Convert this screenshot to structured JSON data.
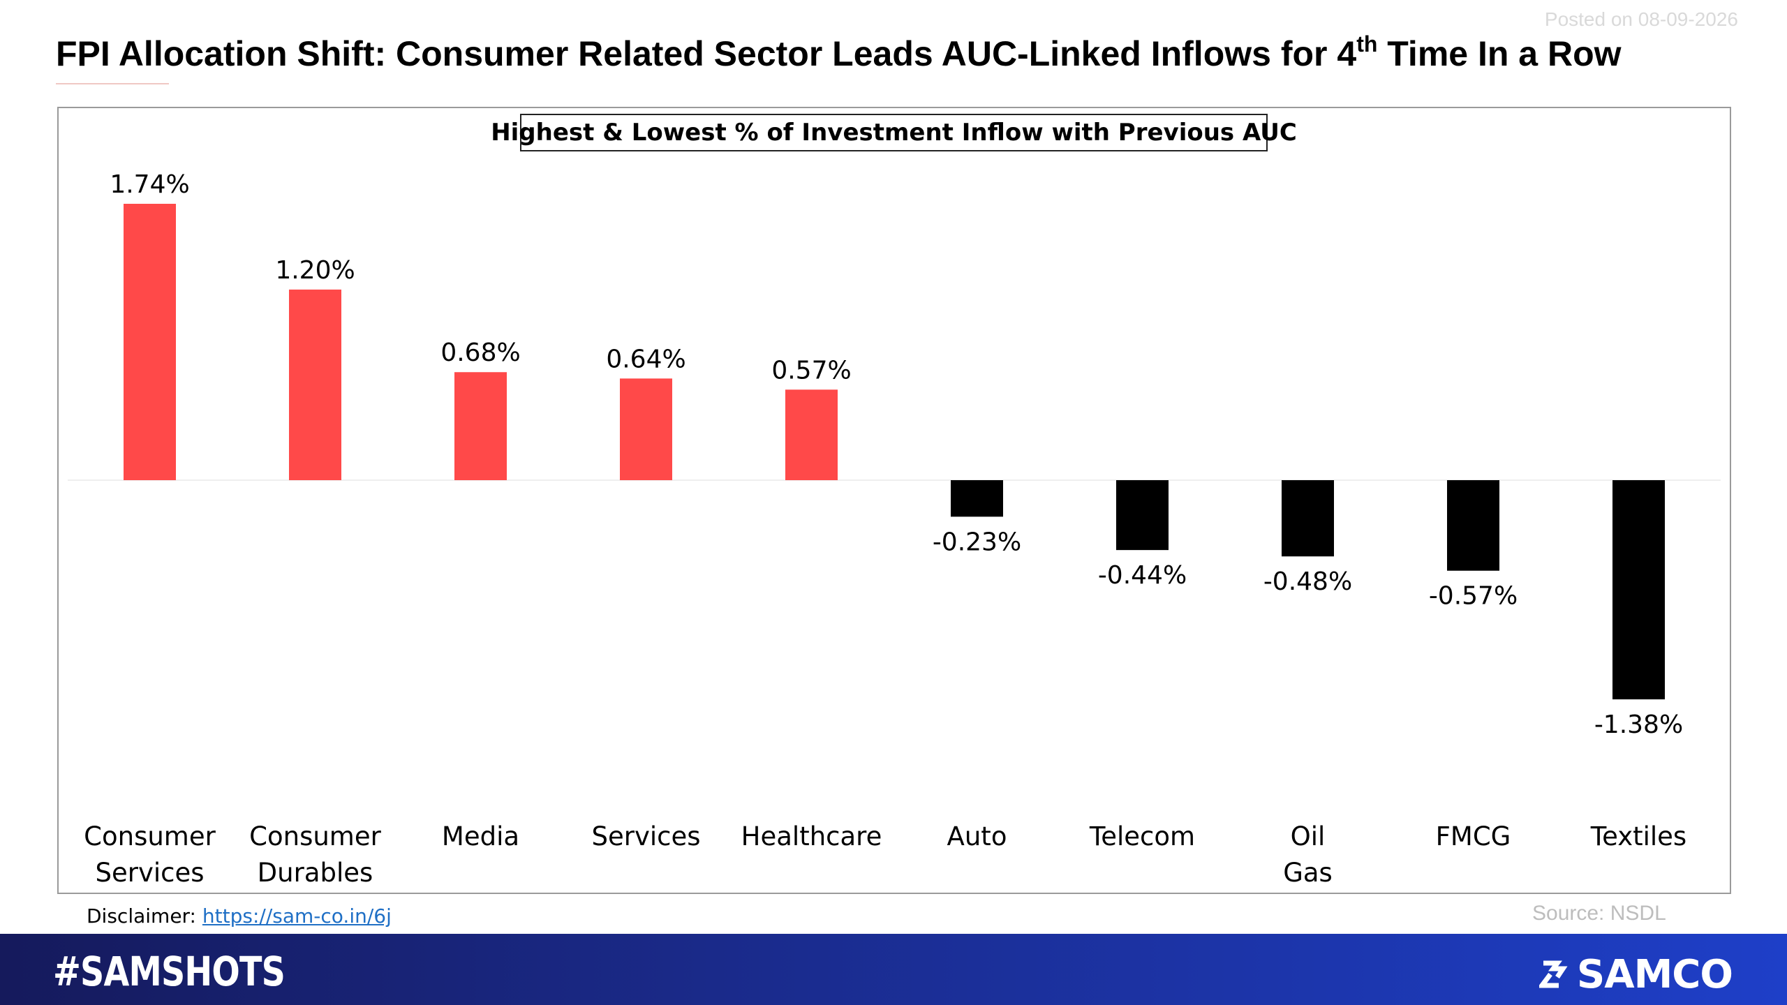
{
  "posted": "Posted on 08-09-2026",
  "title": {
    "before": "FPI Allocation Shift: Consumer Related Sector Leads AUC-Linked Inflows for 4",
    "sup": "th",
    "after": " Time In a Row"
  },
  "disclaimer": {
    "label": "Disclaimer: ",
    "link": "https://sam-co.in/6j"
  },
  "source": "Source: NSDL",
  "footer": {
    "hashtag": "#SAMSHOTS",
    "brand": "SAMCO"
  },
  "colors": {
    "positive": "#ff4949",
    "negative": "#000000",
    "footer_start": "#151a5c",
    "footer_end": "#1e3fc8"
  },
  "chart_data": {
    "type": "bar",
    "title": "Highest & Lowest % of Investment Inflow with Previous AUC",
    "categories": [
      "Consumer Services",
      "Consumer Durables",
      "Media",
      "Services",
      "Healthcare",
      "Auto",
      "Telecom",
      "Oil Gas",
      "FMCG",
      "Textiles"
    ],
    "values": [
      1.74,
      1.2,
      0.68,
      0.64,
      0.57,
      -0.23,
      -0.44,
      -0.48,
      -0.57,
      -1.38
    ],
    "labels": [
      "1.74%",
      "1.20%",
      "0.68%",
      "0.64%",
      "0.57%",
      "-0.23%",
      "-0.44%",
      "-0.48%",
      "-0.57%",
      "-1.38%"
    ],
    "ylim": [
      -1.38,
      1.74
    ],
    "grid": false,
    "legend": "none"
  }
}
